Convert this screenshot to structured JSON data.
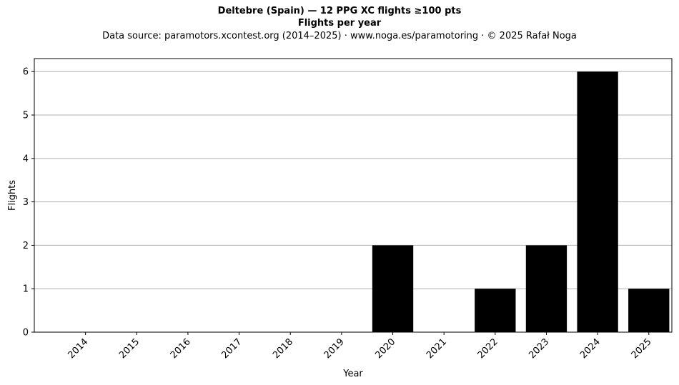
{
  "chart_data": {
    "type": "bar",
    "title": "Deltebre (Spain)  —  12 PPG XC flights ≥100 pts",
    "subtitle": "Flights per year",
    "source_note": "Data source: paramotors.xcontest.org (2014–2025)  ·  www.noga.es/paramotoring  ·  © 2025 Rafał Noga",
    "xlabel": "Year",
    "ylabel": "Flights",
    "categories": [
      "2014",
      "2015",
      "2016",
      "2017",
      "2018",
      "2019",
      "2020",
      "2021",
      "2022",
      "2023",
      "2024",
      "2025"
    ],
    "values": [
      0,
      0,
      0,
      0,
      0,
      0,
      2,
      0,
      1,
      2,
      6,
      1
    ],
    "ylim": [
      0,
      6.3
    ],
    "yticks": [
      0,
      1,
      2,
      3,
      4,
      5,
      6
    ],
    "grid": "horizontal",
    "bar_color": "#000000",
    "grid_color": "#b0b0b0"
  }
}
